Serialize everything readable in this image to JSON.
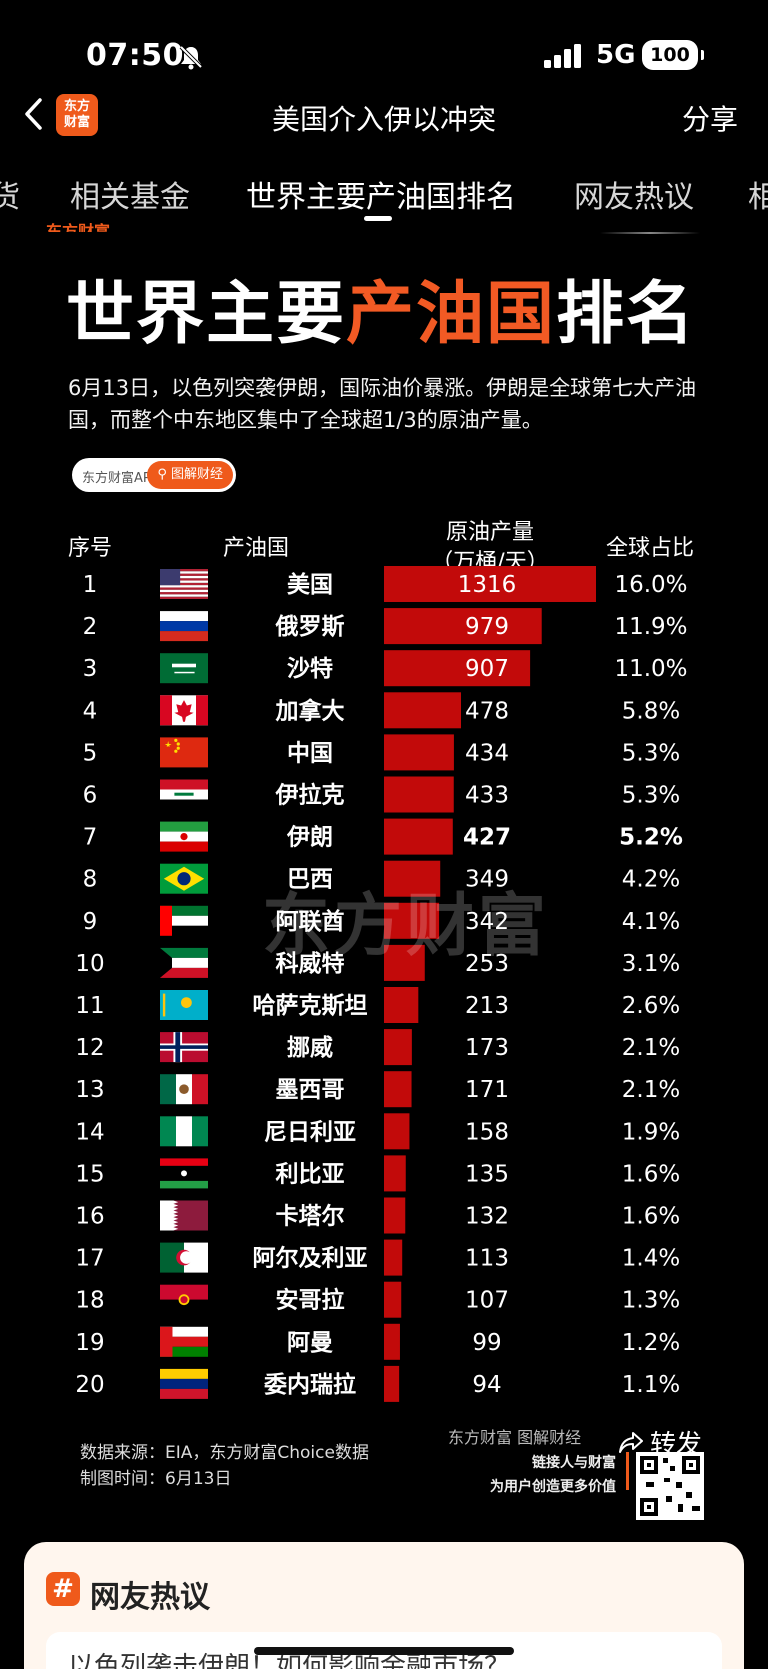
{
  "status": {
    "time": "07:50",
    "network": "5G",
    "battery": "100"
  },
  "nav": {
    "title": "美国介入伊以冲突",
    "share": "分享",
    "logo_line1": "东方",
    "logo_line2": "财富"
  },
  "tabs": [
    {
      "label": "货"
    },
    {
      "label": "相关基金"
    },
    {
      "label": "世界主要产油国排名"
    },
    {
      "label": "网友热议"
    },
    {
      "label": "相"
    }
  ],
  "infographic": {
    "title_a": "世界主要",
    "title_b": "产油国",
    "title_c": "排名",
    "lead": "6月13日，以色列突袭伊朗，国际油价暴涨。伊朗是全球第七大产油国，而整个中东地区集中了全球超1/3的原油产量。",
    "pill_left": "东方财富APP",
    "pill_right": "图解财经",
    "source_line1": "数据来源：EIA，东方财富Choice数据",
    "source_line2": "制图时间：6月13日",
    "brand_line1": "东方财富 图解财经",
    "brand_line2": "链接人与财富",
    "brand_line3": "为用户创造更多价值",
    "forward": "转发",
    "watermark": "东方财富",
    "top_watermark": "东方财富"
  },
  "chart_data": {
    "type": "bar",
    "orientation": "horizontal",
    "columns": [
      "序号",
      "产油国",
      "原油产量（万桶/天）",
      "全球占比"
    ],
    "header": {
      "rank": "序号",
      "country": "产油国",
      "prod_line1": "原油产量",
      "prod_line2": "（万桶/天）",
      "share": "全球占比"
    },
    "bar_color": "#c20a0a",
    "rows": [
      {
        "rank": "1",
        "country": "美国",
        "flag": "us",
        "value": 1316,
        "share": "16.0%"
      },
      {
        "rank": "2",
        "country": "俄罗斯",
        "flag": "ru",
        "value": 979,
        "share": "11.9%"
      },
      {
        "rank": "3",
        "country": "沙特",
        "flag": "sa",
        "value": 907,
        "share": "11.0%"
      },
      {
        "rank": "4",
        "country": "加拿大",
        "flag": "ca",
        "value": 478,
        "share": "5.8%"
      },
      {
        "rank": "5",
        "country": "中国",
        "flag": "cn",
        "value": 434,
        "share": "5.3%"
      },
      {
        "rank": "6",
        "country": "伊拉克",
        "flag": "iq",
        "value": 433,
        "share": "5.3%"
      },
      {
        "rank": "7",
        "country": "伊朗",
        "flag": "ir",
        "value": 427,
        "share": "5.2%",
        "bold": true
      },
      {
        "rank": "8",
        "country": "巴西",
        "flag": "br",
        "value": 349,
        "share": "4.2%"
      },
      {
        "rank": "9",
        "country": "阿联酋",
        "flag": "ae",
        "value": 342,
        "share": "4.1%"
      },
      {
        "rank": "10",
        "country": "科威特",
        "flag": "kw",
        "value": 253,
        "share": "3.1%"
      },
      {
        "rank": "11",
        "country": "哈萨克斯坦",
        "flag": "kz",
        "value": 213,
        "share": "2.6%"
      },
      {
        "rank": "12",
        "country": "挪威",
        "flag": "no",
        "value": 173,
        "share": "2.1%"
      },
      {
        "rank": "13",
        "country": "墨西哥",
        "flag": "mx",
        "value": 171,
        "share": "2.1%"
      },
      {
        "rank": "14",
        "country": "尼日利亚",
        "flag": "ng",
        "value": 158,
        "share": "1.9%"
      },
      {
        "rank": "15",
        "country": "利比亚",
        "flag": "ly",
        "value": 135,
        "share": "1.6%"
      },
      {
        "rank": "16",
        "country": "卡塔尔",
        "flag": "qa",
        "value": 132,
        "share": "1.6%"
      },
      {
        "rank": "17",
        "country": "阿尔及利亚",
        "flag": "dz",
        "value": 113,
        "share": "1.4%"
      },
      {
        "rank": "18",
        "country": "安哥拉",
        "flag": "ao",
        "value": 107,
        "share": "1.3%"
      },
      {
        "rank": "19",
        "country": "阿曼",
        "flag": "om",
        "value": 99,
        "share": "1.2%"
      },
      {
        "rank": "20",
        "country": "委内瑞拉",
        "flag": "ve",
        "value": 94,
        "share": "1.1%"
      }
    ]
  },
  "card": {
    "icon": "#",
    "title": "网友热议",
    "preview": "以色列袭击伊朗！如何影响金融市场？"
  }
}
